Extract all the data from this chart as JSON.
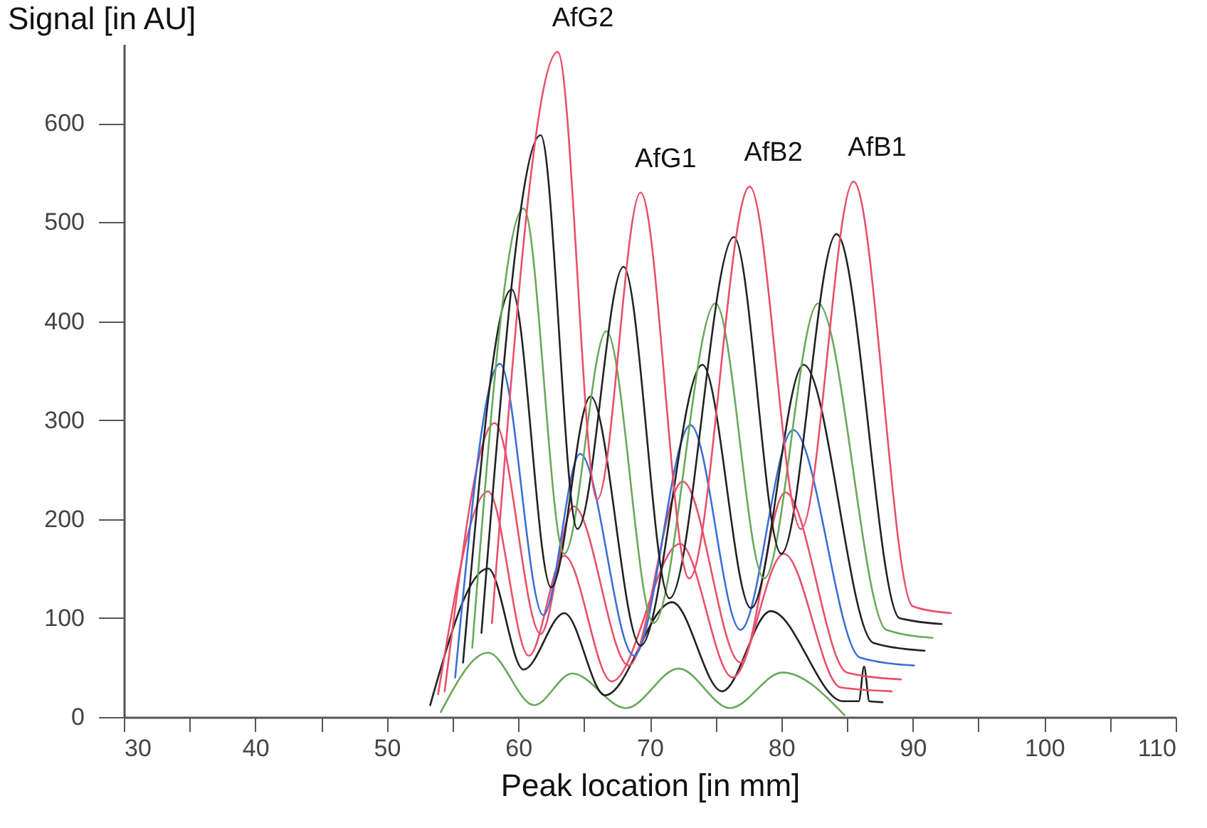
{
  "chart_data": {
    "type": "line",
    "xlabel": "Peak location [in mm]",
    "ylabel": "Signal [in AU]",
    "xlim": [
      30,
      110
    ],
    "ylim": [
      0,
      680
    ],
    "xticks": [
      30,
      {
        "value": 35,
        "label": null
      },
      40,
      {
        "value": 45,
        "label": null
      },
      50,
      {
        "value": 55,
        "label": null
      },
      60,
      {
        "value": 65,
        "label": null
      },
      70,
      {
        "value": 75,
        "label": null
      },
      80,
      {
        "value": 85,
        "label": null
      },
      90,
      {
        "value": 95,
        "label": null
      },
      100,
      {
        "value": 105,
        "label": null
      },
      110
    ],
    "yticks": [
      0,
      100,
      200,
      300,
      400,
      500,
      600
    ],
    "grid": false,
    "marker": "none",
    "line_style": "solid",
    "series": [
      {
        "color": "#6aa85a",
        "x": [
          54.1,
          57.7,
          61.2,
          64.1,
          68.2,
          72.2,
          76.1,
          80.1,
          84.8
        ],
        "values": [
          5,
          65,
          12,
          44,
          9,
          49,
          9,
          45,
          2
        ]
      },
      {
        "color": "#222222",
        "x": [
          53.3,
          57.7,
          60.4,
          63.5,
          66.6,
          71.7,
          75.5,
          79.2,
          84.7,
          85.9,
          86.3,
          86.7,
          87.7
        ],
        "values": [
          12,
          150,
          48,
          105,
          22,
          116,
          26,
          107,
          16,
          16,
          51,
          16,
          15
        ]
      },
      {
        "color": "#e8506a",
        "x": [
          53.9,
          57.7,
          60.8,
          63.5,
          67.1,
          72.3,
          76.3,
          80.2,
          84.5,
          88.4
        ],
        "values": [
          23,
          228,
          62,
          163,
          36,
          175,
          40,
          165,
          30,
          26
        ]
      },
      {
        "color": "#e8506a",
        "x": [
          54.4,
          58.2,
          61.7,
          64.2,
          68.4,
          72.5,
          76.9,
          80.3,
          85,
          89.1
        ],
        "values": [
          26,
          297,
          84,
          213,
          52,
          238,
          55,
          227,
          45,
          38
        ]
      },
      {
        "color": "#3a6fd8",
        "x": [
          55.2,
          58.6,
          61.9,
          64.7,
          68.8,
          73.1,
          76.9,
          80.9,
          86,
          90.1
        ],
        "values": [
          40,
          357,
          103,
          266,
          62,
          295,
          88,
          290,
          60,
          52
        ]
      },
      {
        "color": "#222222",
        "x": [
          55.8,
          59.5,
          62.5,
          65.5,
          69.3,
          74,
          77.7,
          81.7,
          87,
          90.9
        ],
        "values": [
          55,
          432,
          131,
          324,
          72,
          356,
          110,
          356,
          75,
          67
        ]
      },
      {
        "color": "#6aa85a",
        "x": [
          56.5,
          60.4,
          63.5,
          66.7,
          70.3,
          75,
          78.7,
          82.8,
          88,
          91.5
        ],
        "values": [
          70,
          514,
          165,
          390,
          95,
          418,
          140,
          418,
          88,
          80
        ]
      },
      {
        "color": "#222222",
        "x": [
          57.2,
          61.7,
          64.5,
          68,
          71.5,
          76.4,
          80,
          84.2,
          89,
          92.2
        ],
        "values": [
          85,
          588,
          190,
          455,
          120,
          485,
          165,
          488,
          100,
          94
        ]
      },
      {
        "color": "#e8506a",
        "x": [
          58,
          63,
          66,
          69.3,
          73,
          77.6,
          81.5,
          85.5,
          90,
          92.9
        ],
        "values": [
          95,
          672,
          220,
          530,
          140,
          536,
          190,
          541,
          112,
          105
        ]
      }
    ],
    "annotations": [
      {
        "text": "AfG2",
        "x": 63,
        "y": 672
      },
      {
        "text": "AfG1",
        "x": 69.3,
        "y": 530
      },
      {
        "text": "AfB2",
        "x": 77.6,
        "y": 536
      },
      {
        "text": "AfB1",
        "x": 85.5,
        "y": 541
      }
    ]
  }
}
